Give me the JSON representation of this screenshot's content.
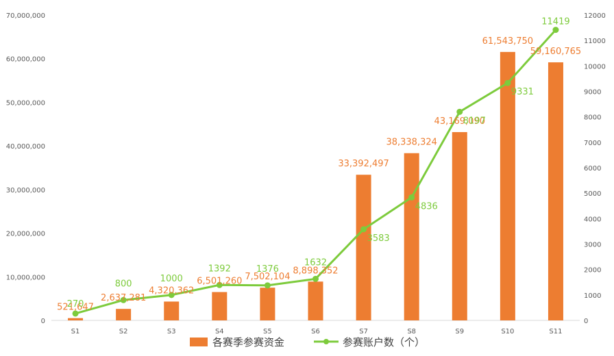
{
  "chart_data": {
    "type": "bar",
    "categories": [
      "S1",
      "S2",
      "S3",
      "S4",
      "S5",
      "S6",
      "S7",
      "S8",
      "S9",
      "S10",
      "S11"
    ],
    "series": [
      {
        "name": "各赛季参赛资金",
        "type": "bar",
        "axis": "left",
        "color": "#ED7D31",
        "values": [
          521647,
          2637281,
          4320362,
          6501260,
          7502104,
          8898352,
          33392497,
          38338324,
          43169090,
          61543750,
          59160765
        ],
        "labels": [
          "521,647",
          "2,637,281",
          "4,320,362",
          "6,501,260",
          "7,502,104",
          "8,898,352",
          "33,392,497",
          "38,338,324",
          "43,169,090",
          "61,543,750",
          "59,160,765"
        ]
      },
      {
        "name": "参赛账户数（个）",
        "type": "line",
        "axis": "right",
        "color": "#7DCB3C",
        "values": [
          270,
          800,
          1000,
          1392,
          1376,
          1632,
          3583,
          4836,
          8197,
          9331,
          11419
        ],
        "labels": [
          "270",
          "800",
          "1000",
          "1392",
          "1376",
          "1632",
          "3583",
          "4836",
          "8197",
          "9331",
          "11419"
        ]
      }
    ],
    "y_left": {
      "ylim": [
        0,
        70000000
      ],
      "ticks": [
        0,
        10000000,
        20000000,
        30000000,
        40000000,
        50000000,
        60000000,
        70000000
      ],
      "tick_labels": [
        "0",
        "10,000,000",
        "20,000,000",
        "30,000,000",
        "40,000,000",
        "50,000,000",
        "60,000,000",
        "70,000,000"
      ]
    },
    "y_right": {
      "ylim": [
        0,
        12000
      ],
      "ticks": [
        0,
        1000,
        2000,
        3000,
        4000,
        5000,
        6000,
        7000,
        8000,
        9000,
        10000,
        11000,
        12000
      ],
      "tick_labels": [
        "0",
        "1000",
        "2000",
        "3000",
        "4000",
        "5000",
        "6000",
        "7000",
        "8000",
        "9000",
        "10000",
        "11000",
        "12000"
      ]
    },
    "grid": false,
    "legend_position": "bottom",
    "title": "",
    "xlabel": "",
    "ylabel": ""
  }
}
